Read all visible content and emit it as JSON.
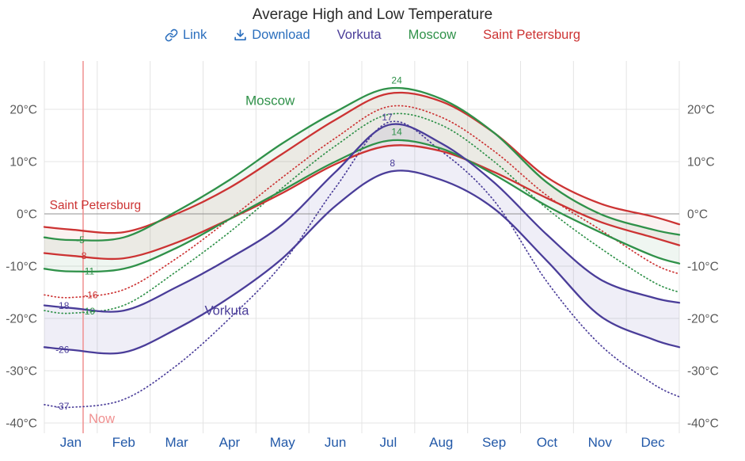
{
  "title": "Average High and Low Temperature",
  "toolbar": {
    "link_label": "Link",
    "download_label": "Download",
    "link_color": "#2a6ebd",
    "cities": [
      {
        "name": "Vorkuta",
        "color": "#4a3d99"
      },
      {
        "name": "Moscow",
        "color": "#2f9149"
      },
      {
        "name": "Saint Petersburg",
        "color": "#cc3333"
      }
    ]
  },
  "chart_data": {
    "type": "line",
    "title": "Average High and Low Temperature",
    "months": [
      "Jan",
      "Feb",
      "Mar",
      "Apr",
      "May",
      "Jun",
      "Jul",
      "Aug",
      "Sep",
      "Oct",
      "Nov",
      "Dec"
    ],
    "yticks": [
      20,
      10,
      0,
      -10,
      -20,
      -30,
      -40
    ],
    "ytick_labels": [
      "20°C",
      "10°C",
      "0°C",
      "-10°C",
      "-20°C",
      "-30°C",
      "-40°C"
    ],
    "ylim": [
      -41,
      26
    ],
    "y_unit": "°C",
    "x": [
      0,
      0.5,
      1.5,
      2.5,
      3.5,
      4.5,
      5.5,
      6.5,
      7.5,
      8.5,
      9.5,
      10.5,
      11.5,
      12
    ],
    "series": [
      {
        "name": "Saint Petersburg high",
        "style": "solid",
        "color": "#cc3333",
        "values": [
          -2.5,
          -3,
          -3.5,
          0,
          5,
          11.5,
          18,
          23,
          21.5,
          15.5,
          7,
          2,
          -0.5,
          -2
        ]
      },
      {
        "name": "Saint Petersburg low",
        "style": "solid",
        "color": "#cc3333",
        "values": [
          -7.5,
          -8,
          -8.5,
          -5.5,
          -1,
          4,
          9.5,
          13,
          12,
          8,
          3,
          -1.5,
          -4.5,
          -6
        ]
      },
      {
        "name": "Saint Petersburg dotted",
        "style": "dotted",
        "color": "#cc3333",
        "values": [
          -15.5,
          -16,
          -14.5,
          -8.5,
          -1,
          7,
          14.5,
          20.5,
          18.5,
          12,
          3.5,
          -3,
          -9.5,
          -11.5
        ]
      },
      {
        "name": "Moscow high",
        "style": "solid",
        "color": "#2f9149",
        "values": [
          -4.5,
          -5,
          -4.5,
          0.5,
          6.5,
          13.5,
          19.5,
          24,
          22,
          15.5,
          6,
          0,
          -3,
          -4
        ]
      },
      {
        "name": "Moscow low",
        "style": "solid",
        "color": "#2f9149",
        "values": [
          -10.5,
          -11,
          -10.5,
          -6.5,
          -1,
          4.5,
          10,
          14,
          12.5,
          7.5,
          1.5,
          -3.5,
          -8,
          -9.5
        ]
      },
      {
        "name": "Moscow dotted",
        "style": "dotted",
        "color": "#2f9149",
        "values": [
          -18.5,
          -19,
          -17.5,
          -11,
          -3.5,
          5,
          13,
          19,
          17,
          10,
          1,
          -6.5,
          -13,
          -15
        ]
      },
      {
        "name": "Vorkuta high",
        "style": "solid",
        "color": "#4a3d99",
        "values": [
          -17.5,
          -18,
          -18.5,
          -14,
          -8.5,
          -2,
          8,
          17,
          13.5,
          6,
          -4,
          -12.5,
          -16,
          -17
        ]
      },
      {
        "name": "Vorkuta low",
        "style": "solid",
        "color": "#4a3d99",
        "values": [
          -25.5,
          -26,
          -26.5,
          -22,
          -16,
          -8.5,
          1.5,
          8,
          6.5,
          1,
          -9,
          -19.5,
          -24,
          -25.5
        ]
      },
      {
        "name": "Vorkuta dotted",
        "style": "dotted",
        "color": "#4a3d99",
        "values": [
          -36.5,
          -37,
          -35.5,
          -29,
          -20,
          -9.5,
          5,
          17.5,
          12,
          2.5,
          -13,
          -25,
          -32.5,
          -35
        ]
      }
    ],
    "bands": [
      {
        "upper": "Saint Petersburg high",
        "lower": "Saint Petersburg low",
        "fill": "rgba(204,72,60,0.07)"
      },
      {
        "upper": "Moscow high",
        "lower": "Moscow low",
        "fill": "rgba(56,142,78,0.08)"
      },
      {
        "upper": "Vorkuta high",
        "lower": "Vorkuta low",
        "fill": "rgba(96,86,176,0.10)"
      }
    ],
    "now_line": {
      "label": "Now",
      "month_frac": 0.733,
      "color": "#f09090"
    },
    "point_labels": [
      {
        "text": "24",
        "mf": 6.66,
        "temp": 24,
        "dy": -6,
        "anchor": "middle",
        "color": "#2f9149"
      },
      {
        "text": "17",
        "mf": 6.48,
        "temp": 17,
        "dy": -6,
        "anchor": "middle",
        "color": "#4a3d99"
      },
      {
        "text": "14",
        "mf": 6.66,
        "temp": 14,
        "dy": -7,
        "anchor": "middle",
        "color": "#2f9149"
      },
      {
        "text": "8",
        "mf": 6.58,
        "temp": 8,
        "dy": -7,
        "anchor": "middle",
        "color": "#4a3d99"
      },
      {
        "text": "-5",
        "mf": 0.6,
        "temp": -5,
        "dy": 4,
        "anchor": "start",
        "color": "#2f9149"
      },
      {
        "text": "-8",
        "mf": 0.64,
        "temp": -8,
        "dy": 4,
        "anchor": "start",
        "color": "#cc3333"
      },
      {
        "text": "-11",
        "mf": 0.7,
        "temp": -11,
        "dy": 4,
        "anchor": "start",
        "color": "#2f9149"
      },
      {
        "text": "-16",
        "mf": 0.75,
        "temp": -15.5,
        "dy": 4,
        "anchor": "start",
        "color": "#cc3333"
      },
      {
        "text": "-19",
        "mf": 0.7,
        "temp": -18.3,
        "dy": 6,
        "anchor": "start",
        "color": "#2f9149"
      },
      {
        "text": "-18",
        "mf": 0.47,
        "temp": -17.6,
        "dy": 4,
        "anchor": "end",
        "color": "#4a3d99"
      },
      {
        "text": "-26",
        "mf": 0.47,
        "temp": -26,
        "dy": 4,
        "anchor": "end",
        "color": "#4a3d99"
      },
      {
        "text": "-37",
        "mf": 0.47,
        "temp": -36.8,
        "dy": 4,
        "anchor": "end",
        "color": "#4a3d99"
      }
    ],
    "city_labels": [
      {
        "text": "Moscow",
        "mf": 3.8,
        "temp": 20.8,
        "size": 17,
        "color": "#2f9149"
      },
      {
        "text": "Saint Petersburg",
        "mf": 0.1,
        "temp": 0.9,
        "size": 15.5,
        "color": "#cc3333"
      },
      {
        "text": "Vorkuta",
        "mf": 3.03,
        "temp": -19.3,
        "size": 16.5,
        "color": "#4a3d99"
      }
    ],
    "axis_colors": {
      "month_labels": "#2359a8",
      "y_labels": "#5a5a5a",
      "grid": "#e4e4e4",
      "zero_line": "#909090"
    }
  }
}
